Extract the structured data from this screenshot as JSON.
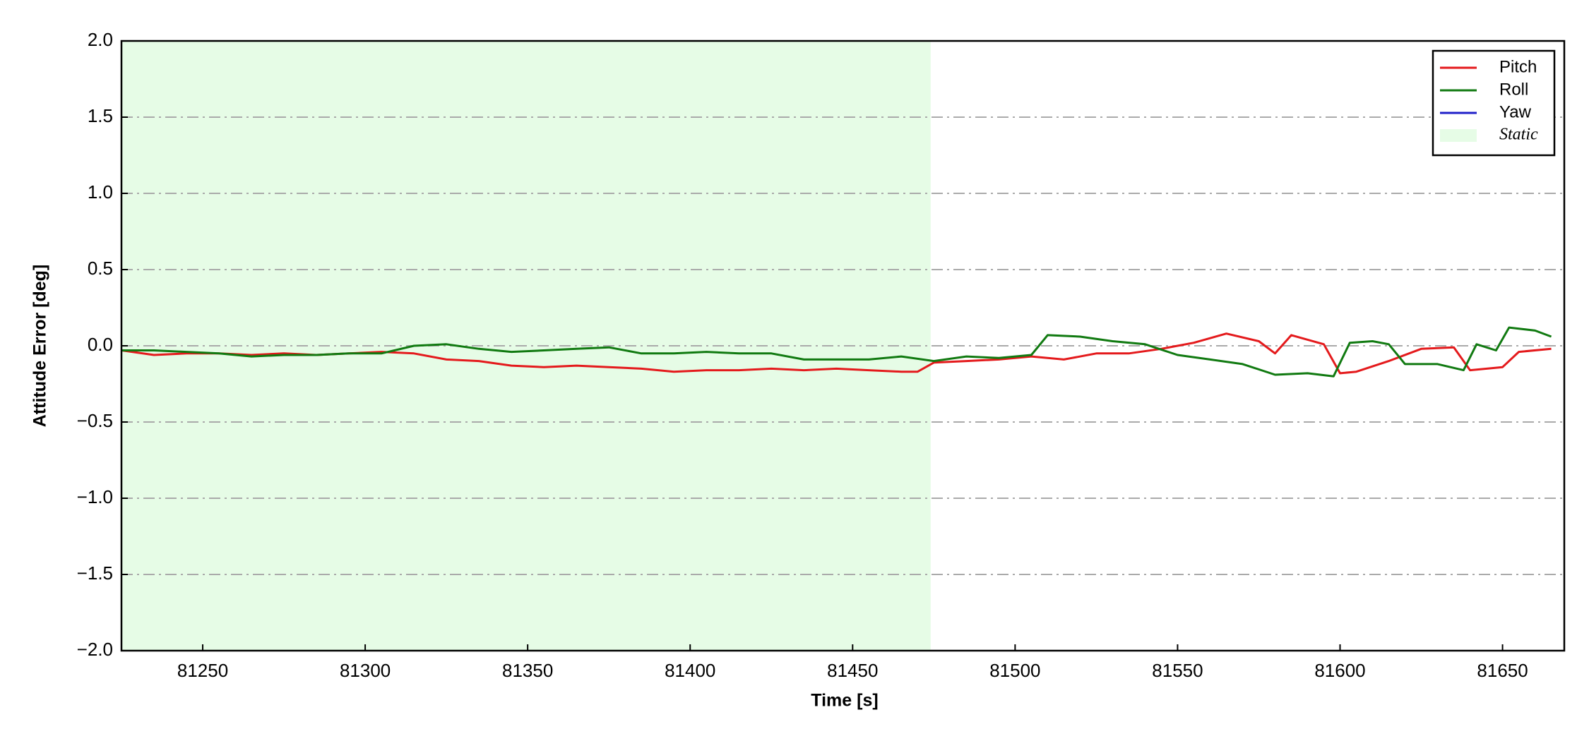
{
  "chart_data": {
    "type": "line",
    "xlabel": "Time [s]",
    "ylabel": "Attitude Error [deg]",
    "xlim": [
      81225,
      81669
    ],
    "xticks": [
      81250,
      81300,
      81350,
      81400,
      81450,
      81500,
      81550,
      81600,
      81650
    ],
    "ylim": [
      -2,
      2
    ],
    "yticks": [
      {
        "value": -2,
        "label": "−2.0"
      },
      {
        "value": -1.5,
        "label": "−1.5"
      },
      {
        "value": -1,
        "label": "−1.0"
      },
      {
        "value": -0.5,
        "label": "−0.5"
      },
      {
        "value": 0,
        "label": "0.0"
      },
      0.5,
      {
        "value": 1,
        "label": "1.0"
      },
      1.5,
      {
        "value": 2,
        "label": "2.0"
      }
    ],
    "grid": true,
    "legend": "upper right",
    "spans": [
      {
        "label": "Static",
        "xlim": [
          81225,
          81474
        ],
        "color": "#e6fce6"
      }
    ],
    "series": [
      {
        "name": "Pitch",
        "color": "#e41a1c",
        "x": [
          81225,
          81235,
          81245,
          81255,
          81265,
          81275,
          81285,
          81295,
          81305,
          81315,
          81325,
          81335,
          81345,
          81355,
          81365,
          81375,
          81385,
          81395,
          81405,
          81415,
          81425,
          81435,
          81445,
          81455,
          81465,
          81470,
          81475,
          81485,
          81495,
          81505,
          81515,
          81525,
          81535,
          81545,
          81555,
          81565,
          81575,
          81580,
          81585,
          81595,
          81600,
          81605,
          81615,
          81625,
          81635,
          81640,
          81650,
          81655,
          81665
        ],
        "values": [
          -0.03,
          -0.06,
          -0.05,
          -0.05,
          -0.06,
          -0.05,
          -0.06,
          -0.05,
          -0.04,
          -0.05,
          -0.09,
          -0.1,
          -0.13,
          -0.14,
          -0.13,
          -0.14,
          -0.15,
          -0.17,
          -0.16,
          -0.16,
          -0.15,
          -0.16,
          -0.15,
          -0.16,
          -0.17,
          -0.17,
          -0.11,
          -0.1,
          -0.09,
          -0.07,
          -0.09,
          -0.05,
          -0.05,
          -0.02,
          0.02,
          0.08,
          0.03,
          -0.05,
          0.07,
          0.01,
          -0.18,
          -0.17,
          -0.1,
          -0.02,
          -0.01,
          -0.16,
          -0.14,
          -0.04,
          -0.02
        ]
      },
      {
        "name": "Roll",
        "color": "#117a11",
        "x": [
          81225,
          81235,
          81245,
          81255,
          81265,
          81275,
          81285,
          81295,
          81305,
          81315,
          81325,
          81335,
          81345,
          81355,
          81365,
          81375,
          81385,
          81395,
          81405,
          81415,
          81425,
          81435,
          81445,
          81455,
          81465,
          81475,
          81485,
          81495,
          81505,
          81510,
          81520,
          81530,
          81540,
          81550,
          81560,
          81570,
          81580,
          81590,
          81598,
          81603,
          81610,
          81615,
          81620,
          81630,
          81638,
          81642,
          81648,
          81652,
          81660,
          81665
        ],
        "values": [
          -0.03,
          -0.03,
          -0.04,
          -0.05,
          -0.07,
          -0.06,
          -0.06,
          -0.05,
          -0.05,
          0.0,
          0.01,
          -0.02,
          -0.04,
          -0.03,
          -0.02,
          -0.01,
          -0.05,
          -0.05,
          -0.04,
          -0.05,
          -0.05,
          -0.09,
          -0.09,
          -0.09,
          -0.07,
          -0.1,
          -0.07,
          -0.08,
          -0.06,
          0.07,
          0.06,
          0.03,
          0.01,
          -0.06,
          -0.09,
          -0.12,
          -0.19,
          -0.18,
          -0.2,
          0.02,
          0.03,
          0.01,
          -0.12,
          -0.12,
          -0.16,
          0.01,
          -0.03,
          0.12,
          0.1,
          0.06
        ]
      },
      {
        "name": "Yaw",
        "color": "#1f1fc8",
        "x": [],
        "values": []
      }
    ]
  }
}
